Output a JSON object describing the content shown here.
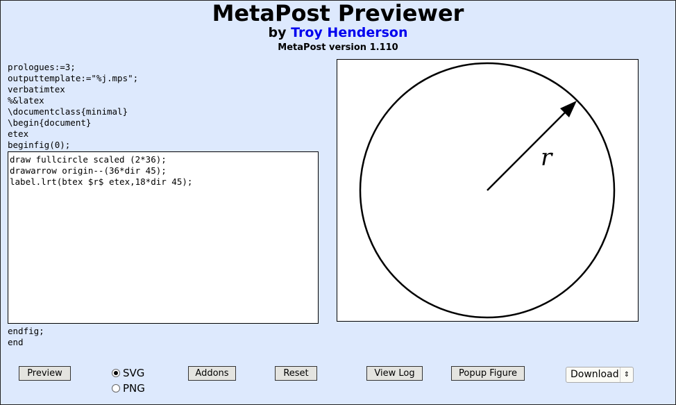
{
  "header": {
    "title": "MetaPost Previewer",
    "by": "by",
    "author": "Troy Henderson",
    "version": "MetaPost version 1.110"
  },
  "code": {
    "preamble": "prologues:=3;\noutputtemplate:=\"%j.mps\";\nverbatimtex\n%&latex\n\\documentclass{minimal}\n\\begin{document}\netex\nbeginfig(0);",
    "editor": "draw fullcircle scaled (2*36);\ndrawarrow origin--(36*dir 45);\nlabel.lrt(btex $r$ etex,18*dir 45);",
    "postamble": "endfig;\nend"
  },
  "preview": {
    "label": "r"
  },
  "controls": {
    "preview": "Preview",
    "svg": "SVG",
    "png": "PNG",
    "format_selected": "SVG",
    "addons": "Addons",
    "reset": "Reset",
    "view_log": "View Log",
    "popup": "Popup Figure",
    "download": "Download"
  }
}
